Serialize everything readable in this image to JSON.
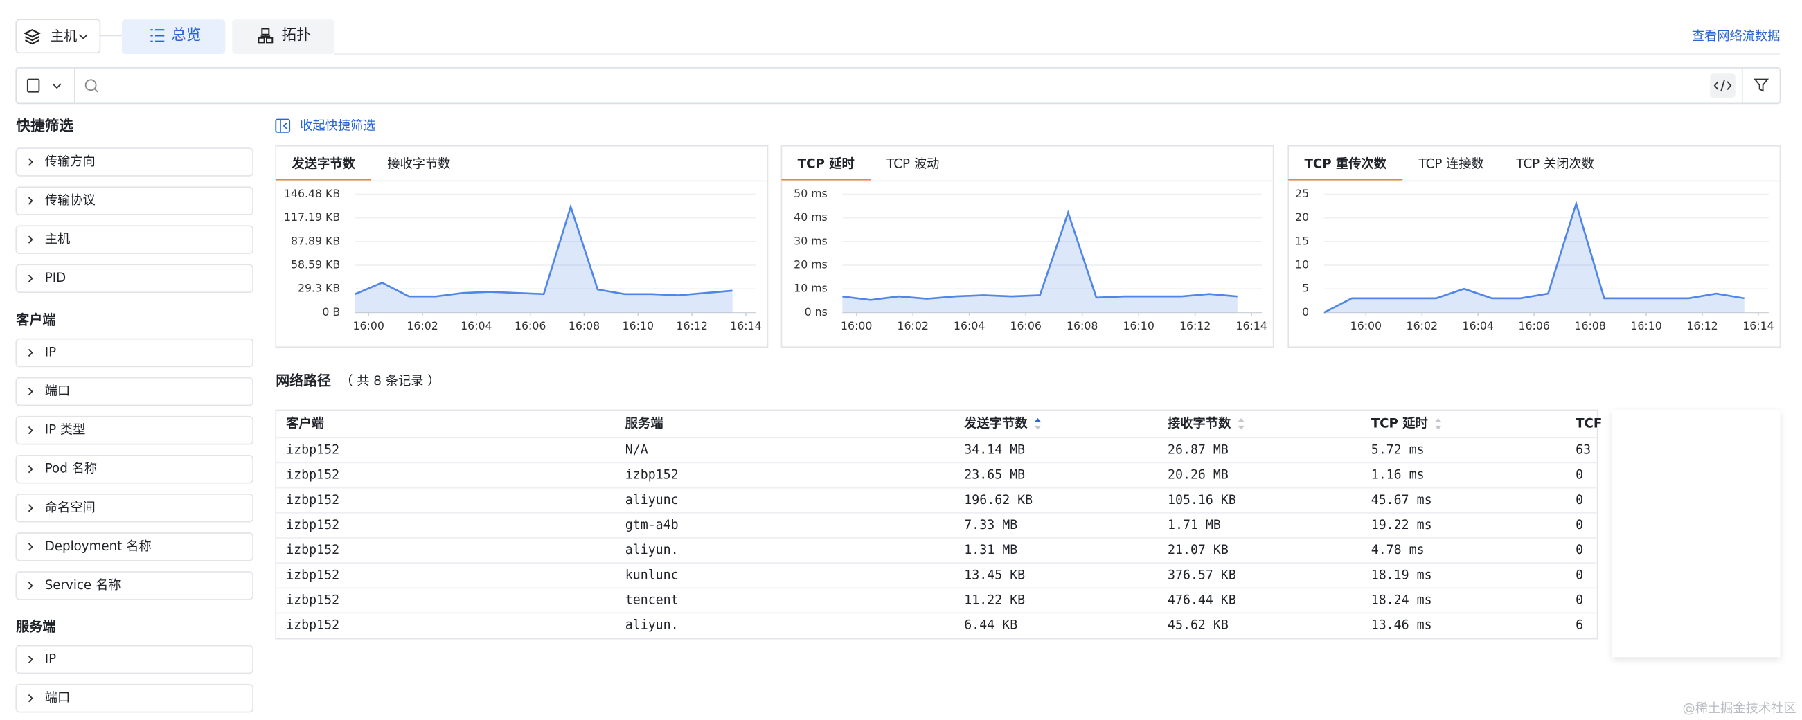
{
  "header": {
    "host": "主机",
    "tabs": [
      "总览",
      "拓扑"
    ],
    "link": "查看网络流数据"
  },
  "sidebar": {
    "title": "快捷筛选",
    "groups": [
      {
        "items": [
          "传输方向",
          "传输协议",
          "主机",
          "PID"
        ]
      },
      {
        "title": "客户端",
        "items": [
          "IP",
          "端口",
          "IP 类型",
          "Pod 名称",
          "命名空间",
          "Deployment 名称",
          "Service 名称"
        ]
      },
      {
        "title": "服务端",
        "items": [
          "IP",
          "端口"
        ]
      }
    ]
  },
  "collapse": "收起快捷筛选",
  "chart_data": [
    {
      "type": "line",
      "tabs": [
        "发送字节数",
        "接收字节数"
      ],
      "color": "#4f86e8",
      "x": [
        -0.5,
        0.5,
        1.5,
        2.5,
        3.5,
        4.5,
        5.5,
        6.5,
        7.5,
        8.5,
        9.5,
        10.5,
        11.5,
        12.5,
        13.5
      ],
      "values": [
        22.8,
        36.9,
        19.9,
        19.9,
        24.2,
        25.6,
        24.2,
        22.8,
        130.9,
        28.5,
        22.8,
        22.8,
        21.3,
        24.2,
        27.0
      ],
      "xlim": [
        -0.5,
        14
      ],
      "ylim": [
        0,
        146.48
      ],
      "xticks": [
        {
          "value": 0,
          "label": "16:00"
        },
        {
          "value": 2,
          "label": "16:02"
        },
        {
          "value": 4,
          "label": "16:04"
        },
        {
          "value": 6,
          "label": "16:06"
        },
        {
          "value": 8,
          "label": "16:08"
        },
        {
          "value": 10,
          "label": "16:10"
        },
        {
          "value": 12,
          "label": "16:12"
        },
        {
          "value": 14,
          "label": "16:14"
        }
      ],
      "yticks": [
        {
          "value": 0,
          "label": "0 B"
        },
        {
          "value": 29.3,
          "label": "29.3 KB"
        },
        {
          "value": 58.59,
          "label": "58.59 KB"
        },
        {
          "value": 87.89,
          "label": "87.89 KB"
        },
        {
          "value": 117.19,
          "label": "117.19 KB"
        },
        {
          "value": 146.48,
          "label": "146.48 KB"
        }
      ]
    },
    {
      "type": "line",
      "tabs": [
        "TCP 延时",
        "TCP 波动"
      ],
      "color": "#4f86e8",
      "x": [
        -0.5,
        0.5,
        1.5,
        2.5,
        3.5,
        4.5,
        5.5,
        6.5,
        7.5,
        8.5,
        9.5,
        10.5,
        11.5,
        12.5,
        13.5
      ],
      "values": [
        6.8,
        5.3,
        6.8,
        5.8,
        6.8,
        7.3,
        6.8,
        7.3,
        42.2,
        6.3,
        6.8,
        6.8,
        6.8,
        7.8,
        6.8
      ],
      "xlim": [
        -0.5,
        14
      ],
      "ylim": [
        0,
        50
      ],
      "xticks": [
        {
          "value": 0,
          "label": "16:00"
        },
        {
          "value": 2,
          "label": "16:02"
        },
        {
          "value": 4,
          "label": "16:04"
        },
        {
          "value": 6,
          "label": "16:06"
        },
        {
          "value": 8,
          "label": "16:08"
        },
        {
          "value": 10,
          "label": "16:10"
        },
        {
          "value": 12,
          "label": "16:12"
        },
        {
          "value": 14,
          "label": "16:14"
        }
      ],
      "yticks": [
        {
          "value": 0,
          "label": "0 ns"
        },
        {
          "value": 10,
          "label": "10 ms"
        },
        {
          "value": 20,
          "label": "20 ms"
        },
        {
          "value": 30,
          "label": "30 ms"
        },
        {
          "value": 40,
          "label": "40 ms"
        },
        {
          "value": 50,
          "label": "50 ms"
        }
      ]
    },
    {
      "type": "line",
      "tabs": [
        "TCP 重传次数",
        "TCP 连接数",
        "TCP 关闭次数"
      ],
      "color": "#4f86e8",
      "x": [
        -1.5,
        -0.5,
        0.5,
        1.5,
        2.5,
        3.5,
        4.5,
        5.5,
        6.5,
        7.5,
        8.5,
        9.5,
        10.5,
        11.5,
        12.5,
        13.5
      ],
      "values": [
        0,
        3,
        3,
        3,
        3,
        5,
        3,
        3,
        4,
        23,
        3,
        3,
        3,
        3,
        4,
        3
      ],
      "xlim": [
        -1.5,
        14
      ],
      "ylim": [
        0,
        25
      ],
      "xticks": [
        {
          "value": 0,
          "label": "16:00"
        },
        {
          "value": 2,
          "label": "16:02"
        },
        {
          "value": 4,
          "label": "16:04"
        },
        {
          "value": 6,
          "label": "16:06"
        },
        {
          "value": 8,
          "label": "16:08"
        },
        {
          "value": 10,
          "label": "16:10"
        },
        {
          "value": 12,
          "label": "16:12"
        },
        {
          "value": 14,
          "label": "16:14"
        }
      ],
      "yticks": [
        0,
        5,
        10,
        15,
        20,
        25
      ]
    }
  ],
  "table": {
    "title": "网络路径",
    "count": "（ 共 8 条记录 ）",
    "columns": [
      "客户端",
      "服务端",
      "发送字节数",
      "接收字节数",
      "TCP 延时",
      "TCF"
    ],
    "rows": [
      [
        "izbp152",
        "N/A",
        "34.14 MB",
        "26.87 MB",
        "5.72 ms",
        "63"
      ],
      [
        "izbp152",
        "izbp152",
        "23.65 MB",
        "20.26 MB",
        "1.16 ms",
        "0"
      ],
      [
        "izbp152",
        "aliyunc",
        "196.62 KB",
        "105.16 KB",
        "45.67 ms",
        "0"
      ],
      [
        "izbp152",
        "gtm-a4b",
        "7.33 MB",
        "1.71 MB",
        "19.22 ms",
        "0"
      ],
      [
        "izbp152",
        "aliyun.",
        "1.31 MB",
        "21.07 KB",
        "4.78 ms",
        "0"
      ],
      [
        "izbp152",
        "kunlunc",
        "13.45 KB",
        "376.57 KB",
        "18.19 ms",
        "0"
      ],
      [
        "izbp152",
        "tencent",
        "11.22 KB",
        "476.44 KB",
        "18.24 ms",
        "0"
      ],
      [
        "izbp152",
        "aliyun.",
        "6.44 KB",
        "45.62 KB",
        "13.46 ms",
        "6"
      ]
    ]
  },
  "watermark": "@稀土掘金技术社区"
}
